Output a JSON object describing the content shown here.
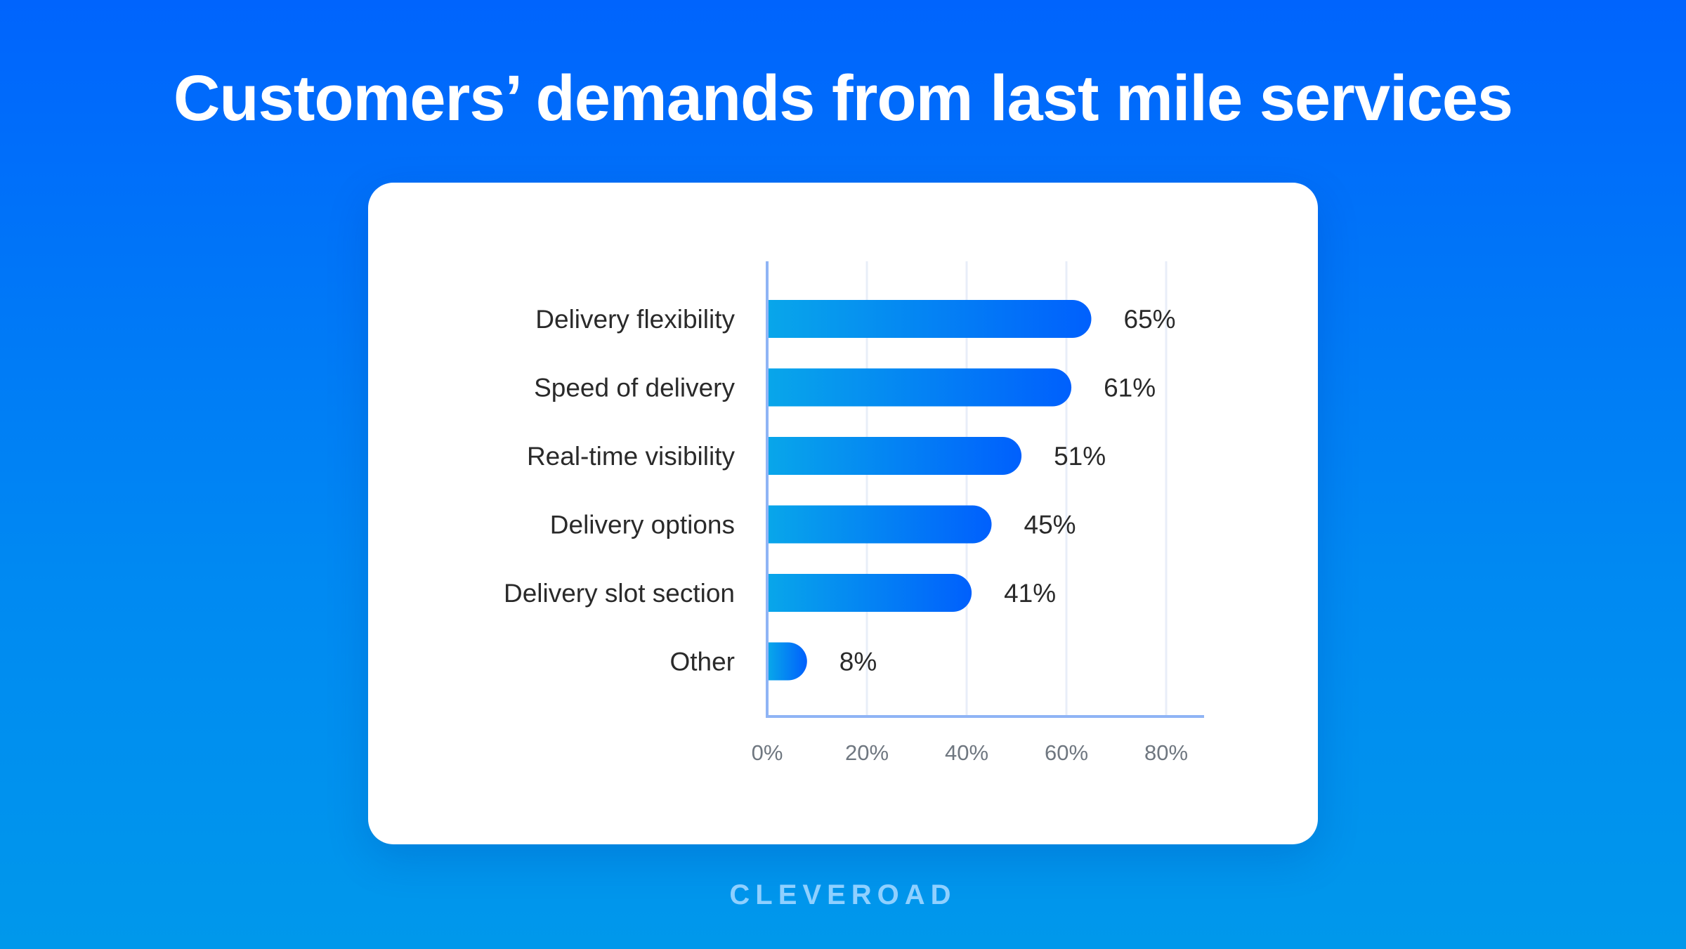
{
  "title": "Customers’ demands from last mile services",
  "brand": "CLEVEROAD",
  "chart_data": {
    "type": "bar",
    "orientation": "horizontal",
    "title": "Customers’ demands from last mile services",
    "categories": [
      "Delivery flexibility",
      "Speed of delivery",
      "Real-time visibility",
      "Delivery options",
      "Delivery slot section",
      "Other"
    ],
    "values": [
      65,
      61,
      51,
      45,
      41,
      8
    ],
    "value_labels": [
      "65%",
      "61%",
      "51%",
      "45%",
      "41%",
      "8%"
    ],
    "xlim": [
      0,
      88
    ],
    "xticks": [
      0,
      20,
      40,
      60,
      80
    ],
    "xtick_labels": [
      "0%",
      "20%",
      "40%",
      "60%",
      "80%"
    ],
    "xlabel": "",
    "ylabel": "",
    "grid": "vertical",
    "colors": {
      "bar_start": "#08a6ea",
      "bar_end": "#0060fd",
      "axis": "#8fb4f5",
      "grid": "#e8eef8"
    }
  }
}
